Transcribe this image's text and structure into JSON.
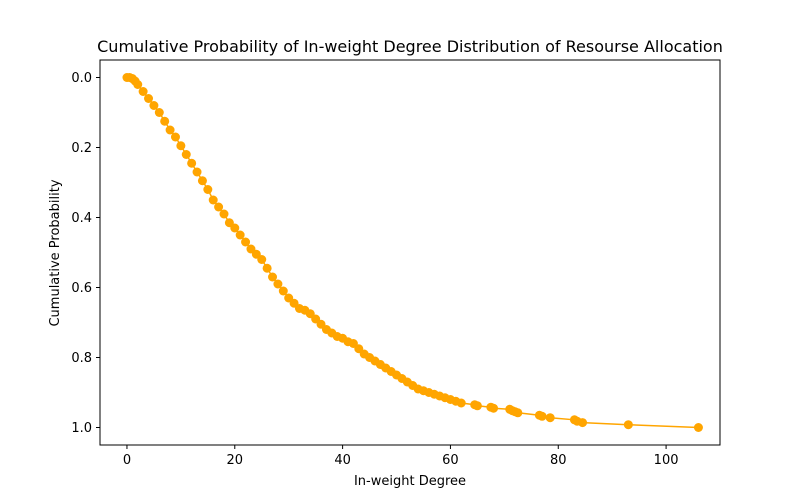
{
  "chart_data": {
    "type": "line",
    "title": "Cumulative Probability of In-weight Degree Distribution of Resourse Allocation",
    "xlabel": "In-weight Degree",
    "ylabel": "Cumulative Probability",
    "xlim": [
      -5,
      110
    ],
    "ylim": [
      1.05,
      -0.05
    ],
    "y_inverted": true,
    "x_ticks": [
      0,
      20,
      40,
      60,
      80,
      100
    ],
    "y_ticks": [
      0.0,
      0.2,
      0.4,
      0.6,
      0.8,
      1.0
    ],
    "x_tick_labels": [
      "0",
      "20",
      "40",
      "60",
      "80",
      "100"
    ],
    "y_tick_labels": [
      "0.0",
      "0.2",
      "0.4",
      "0.6",
      "0.8",
      "1.0"
    ],
    "grid": false,
    "legend": "none",
    "marker": "circle",
    "color": "#FFA500",
    "series": [
      {
        "x": [
          0,
          0.5,
          1,
          1.5,
          2,
          3,
          4,
          5,
          6,
          7,
          8,
          9,
          10,
          11,
          12,
          13,
          14,
          15,
          16,
          17,
          18,
          19,
          20,
          21,
          22,
          23,
          24,
          25,
          26,
          27,
          28,
          29,
          30,
          31,
          32,
          33,
          34,
          35,
          36,
          37,
          38,
          39,
          40,
          41,
          42,
          43,
          44,
          45,
          46,
          47,
          48,
          49,
          50,
          51,
          52,
          53,
          54,
          55,
          56,
          57,
          58,
          59,
          60,
          61,
          62,
          64.5,
          65,
          67.5,
          68,
          71,
          71.5,
          72,
          72.5,
          76.5,
          77,
          78.5,
          83,
          83.5,
          84.5,
          93,
          106
        ],
        "y": [
          0.0,
          0.0,
          0.003,
          0.01,
          0.02,
          0.04,
          0.06,
          0.08,
          0.1,
          0.125,
          0.15,
          0.17,
          0.195,
          0.22,
          0.245,
          0.27,
          0.295,
          0.32,
          0.35,
          0.37,
          0.39,
          0.415,
          0.43,
          0.45,
          0.47,
          0.49,
          0.505,
          0.52,
          0.545,
          0.57,
          0.59,
          0.61,
          0.63,
          0.645,
          0.66,
          0.665,
          0.675,
          0.69,
          0.705,
          0.72,
          0.73,
          0.74,
          0.745,
          0.755,
          0.76,
          0.775,
          0.79,
          0.8,
          0.81,
          0.82,
          0.83,
          0.84,
          0.85,
          0.86,
          0.87,
          0.88,
          0.89,
          0.895,
          0.9,
          0.905,
          0.91,
          0.915,
          0.92,
          0.925,
          0.93,
          0.935,
          0.938,
          0.942,
          0.945,
          0.948,
          0.952,
          0.955,
          0.958,
          0.965,
          0.968,
          0.972,
          0.978,
          0.982,
          0.986,
          0.992,
          1.0
        ]
      }
    ]
  }
}
